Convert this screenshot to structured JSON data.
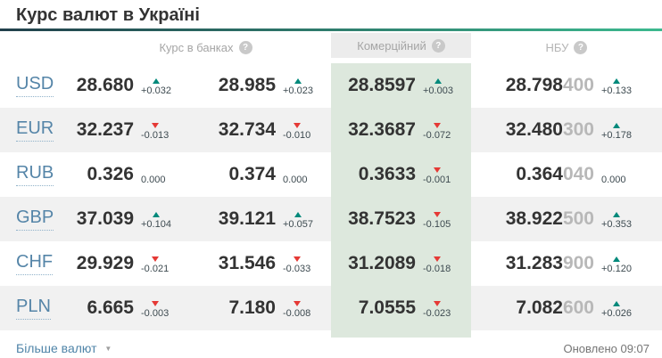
{
  "title": "Курс валют в Україні",
  "headers": {
    "banks": "Курс в банках",
    "commercial": "Комерційний",
    "nbu": "НБУ"
  },
  "icons": {
    "help": "?",
    "chevron_down": "▼"
  },
  "colors": {
    "accent_gradient_start": "#21404b",
    "accent_gradient_end": "#3cb98f",
    "up_arrow": "#00897b",
    "down_arrow": "#e53935",
    "commercial_bg": "#dde8dd",
    "stripe_bg": "#f1f1f1",
    "link": "#5585a8"
  },
  "rows": [
    {
      "code": "USD",
      "buy": {
        "value": "28.680",
        "delta": "+0.032",
        "dir": "up"
      },
      "sell": {
        "value": "28.985",
        "delta": "+0.023",
        "dir": "up"
      },
      "commercial": {
        "value": "28.8597",
        "delta": "+0.003",
        "dir": "up"
      },
      "nbu": {
        "main": "28.798",
        "minor": "400",
        "delta": "+0.133",
        "dir": "up"
      }
    },
    {
      "code": "EUR",
      "buy": {
        "value": "32.237",
        "delta": "-0.013",
        "dir": "down"
      },
      "sell": {
        "value": "32.734",
        "delta": "-0.010",
        "dir": "down"
      },
      "commercial": {
        "value": "32.3687",
        "delta": "-0.072",
        "dir": "down"
      },
      "nbu": {
        "main": "32.480",
        "minor": "300",
        "delta": "+0.178",
        "dir": "up"
      }
    },
    {
      "code": "RUB",
      "buy": {
        "value": "0.326",
        "delta": "0.000",
        "dir": "none"
      },
      "sell": {
        "value": "0.374",
        "delta": "0.000",
        "dir": "none"
      },
      "commercial": {
        "value": "0.3633",
        "delta": "-0.001",
        "dir": "down"
      },
      "nbu": {
        "main": "0.364",
        "minor": "040",
        "delta": "0.000",
        "dir": "none"
      }
    },
    {
      "code": "GBP",
      "buy": {
        "value": "37.039",
        "delta": "+0.104",
        "dir": "up"
      },
      "sell": {
        "value": "39.121",
        "delta": "+0.057",
        "dir": "up"
      },
      "commercial": {
        "value": "38.7523",
        "delta": "-0.105",
        "dir": "down"
      },
      "nbu": {
        "main": "38.922",
        "minor": "500",
        "delta": "+0.353",
        "dir": "up"
      }
    },
    {
      "code": "CHF",
      "buy": {
        "value": "29.929",
        "delta": "-0.021",
        "dir": "down"
      },
      "sell": {
        "value": "31.546",
        "delta": "-0.033",
        "dir": "down"
      },
      "commercial": {
        "value": "31.2089",
        "delta": "-0.018",
        "dir": "down"
      },
      "nbu": {
        "main": "31.283",
        "minor": "900",
        "delta": "+0.120",
        "dir": "up"
      }
    },
    {
      "code": "PLN",
      "buy": {
        "value": "6.665",
        "delta": "-0.003",
        "dir": "down"
      },
      "sell": {
        "value": "7.180",
        "delta": "-0.008",
        "dir": "down"
      },
      "commercial": {
        "value": "7.0555",
        "delta": "-0.023",
        "dir": "down"
      },
      "nbu": {
        "main": "7.082",
        "minor": "600",
        "delta": "+0.026",
        "dir": "up"
      }
    }
  ],
  "footer": {
    "more_label": "Більше валют",
    "updated": "Оновлено 09:07"
  }
}
